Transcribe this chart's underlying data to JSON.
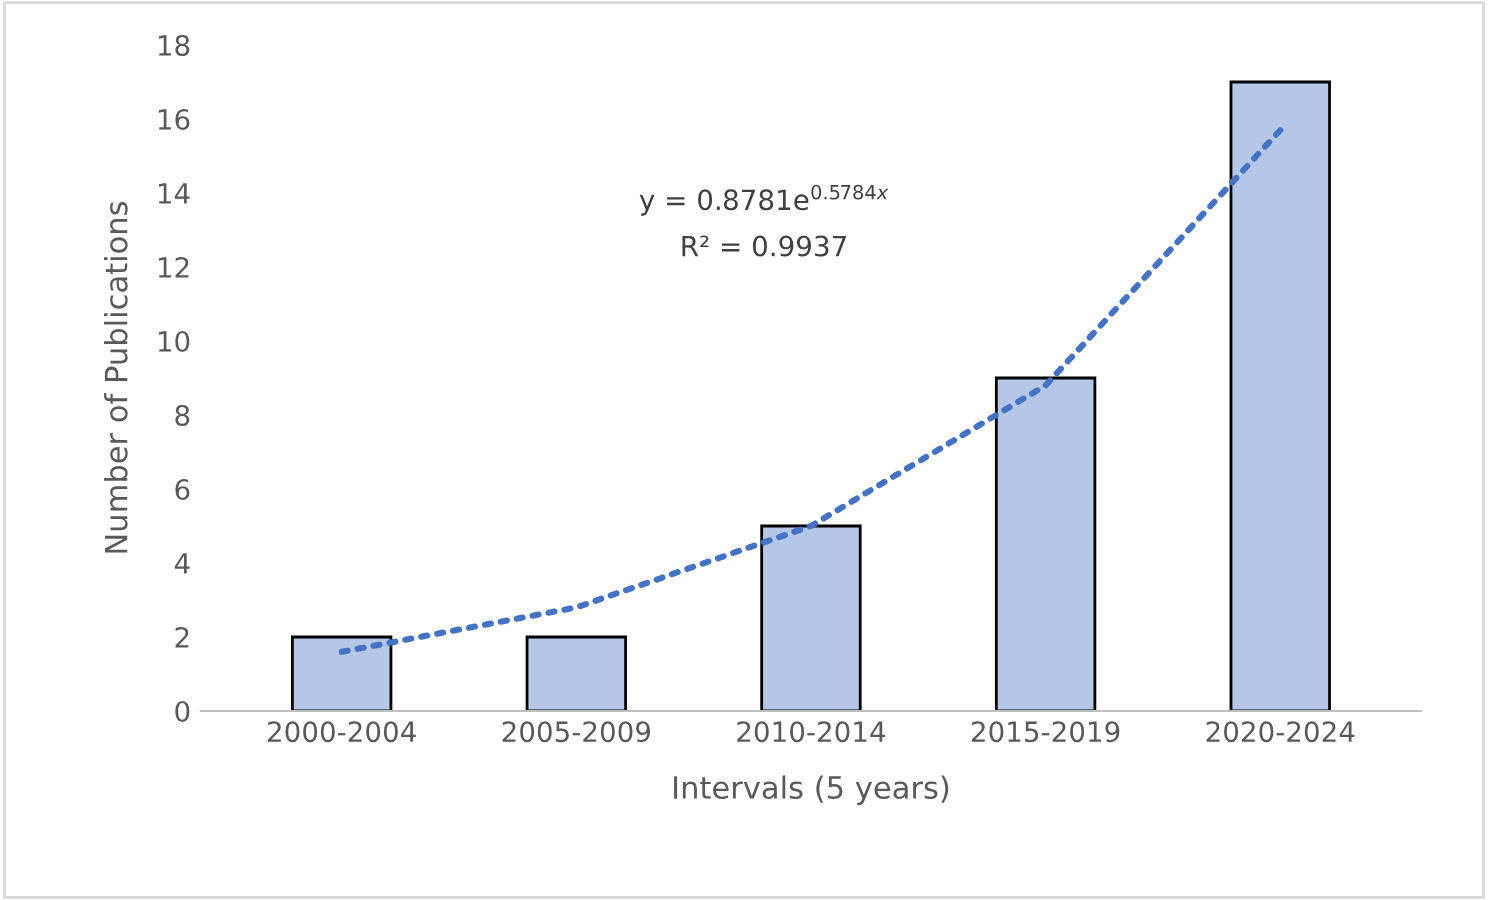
{
  "chart_data": {
    "type": "bar",
    "xlabel": "Intervals (5 years)",
    "ylabel": "Number of Publications",
    "categories": [
      "2000-2004",
      "2005-2009",
      "2010-2014",
      "2015-2019",
      "2020-2024"
    ],
    "series": [
      {
        "color": "#b4c7e7",
        "values": [
          2,
          2,
          5,
          9,
          17
        ]
      },
      {
        "type": "line",
        "color": "#4472c4",
        "line_style": "dotted",
        "x": [
          "2000-2004",
          "2005-2009",
          "2010-2014",
          "2015-2019",
          "2020-2024"
        ],
        "values": [
          1.6,
          2.8,
          5,
          8.8,
          15.7
        ]
      }
    ],
    "ylim": [
      0,
      18
    ],
    "yticks": [
      0,
      2,
      4,
      6,
      8,
      10,
      12,
      14,
      16,
      18
    ],
    "grid": false,
    "legend": false,
    "annotations": [
      "y = 0.8781e$^{0.5784x}$",
      "R² = 0.9937"
    ]
  }
}
